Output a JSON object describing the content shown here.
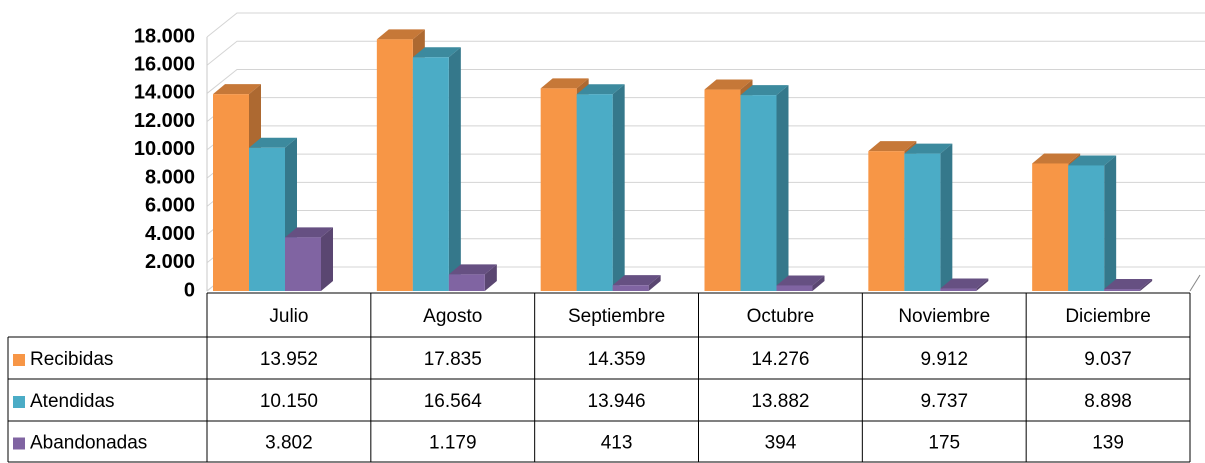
{
  "chart_data": {
    "type": "bar",
    "categories": [
      "Julio",
      "Agosto",
      "Septiembre",
      "Octubre",
      "Noviembre",
      "Diciembre"
    ],
    "series": [
      {
        "name": "Recibidas",
        "color": "#f79646",
        "values": [
          13952,
          17835,
          14359,
          14276,
          9912,
          9037
        ],
        "value_labels": [
          "13.952",
          "17.835",
          "14.359",
          "14.276",
          "9.912",
          "9.037"
        ]
      },
      {
        "name": "Atendidas",
        "color": "#4bacc6",
        "values": [
          10150,
          16564,
          13946,
          13882,
          9737,
          8898
        ],
        "value_labels": [
          "10.150",
          "16.564",
          "13.946",
          "13.882",
          "9.737",
          "8.898"
        ]
      },
      {
        "name": "Abandonadas",
        "color": "#8064a2",
        "values": [
          3802,
          1179,
          413,
          394,
          175,
          139
        ],
        "value_labels": [
          "3.802",
          "1.179",
          "413",
          "394",
          "175",
          "139"
        ]
      }
    ],
    "ylim": [
      0,
      18000
    ],
    "yticks": [
      0,
      {
        "value": 2000,
        "label": "2.000"
      },
      {
        "value": 4000,
        "label": "4.000"
      },
      {
        "value": 6000,
        "label": "6.000"
      },
      {
        "value": 8000,
        "label": "8.000"
      },
      {
        "value": 10000,
        "label": "10.000"
      },
      {
        "value": 12000,
        "label": "12.000"
      },
      {
        "value": 14000,
        "label": "14.000"
      },
      {
        "value": 16000,
        "label": "16.000"
      },
      {
        "value": 18000,
        "label": "18.000"
      }
    ],
    "grid": true
  }
}
